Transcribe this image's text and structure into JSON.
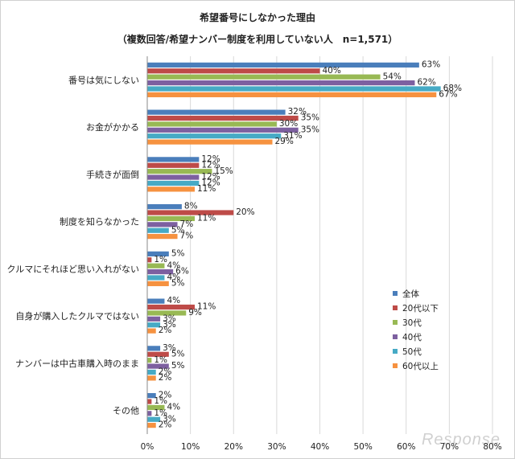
{
  "watermark": "Response",
  "chart_data": {
    "type": "bar",
    "orientation": "horizontal",
    "title": "希望番号にしなかった理由",
    "subtitle": "（複数回答/希望ナンバー制度を利用していない人　n=1,571）",
    "categories": [
      "番号は気にしない",
      "お金がかかる",
      "手続きが面倒",
      "制度を知らなかった",
      "クルマにそれほど思い入れがない",
      "自身が購入したクルマではない",
      "ナンバーは中古車購入時のまま",
      "その他"
    ],
    "xlim": [
      0,
      80
    ],
    "ticks": [
      0,
      10,
      20,
      30,
      40,
      50,
      60,
      70,
      80
    ],
    "tick_suffix": "%",
    "grid": true,
    "legend_position": "right",
    "series": [
      {
        "name": "全体",
        "color": "#4a7ebb",
        "values": [
          63,
          32,
          12,
          8,
          5,
          4,
          3,
          2
        ]
      },
      {
        "name": "20代以下",
        "color": "#be4b48",
        "values": [
          40,
          35,
          12,
          20,
          1,
          11,
          5,
          1
        ]
      },
      {
        "name": "30代",
        "color": "#98b954",
        "values": [
          54,
          30,
          15,
          11,
          4,
          9,
          1,
          4
        ]
      },
      {
        "name": "40代",
        "color": "#7d60a0",
        "values": [
          62,
          35,
          12,
          7,
          6,
          3,
          5,
          1
        ]
      },
      {
        "name": "50代",
        "color": "#46aac5",
        "values": [
          68,
          31,
          12,
          5,
          4,
          3,
          2,
          3
        ]
      },
      {
        "name": "60代以上",
        "color": "#f69240",
        "values": [
          67,
          29,
          11,
          7,
          5,
          2,
          2,
          2
        ]
      }
    ]
  }
}
